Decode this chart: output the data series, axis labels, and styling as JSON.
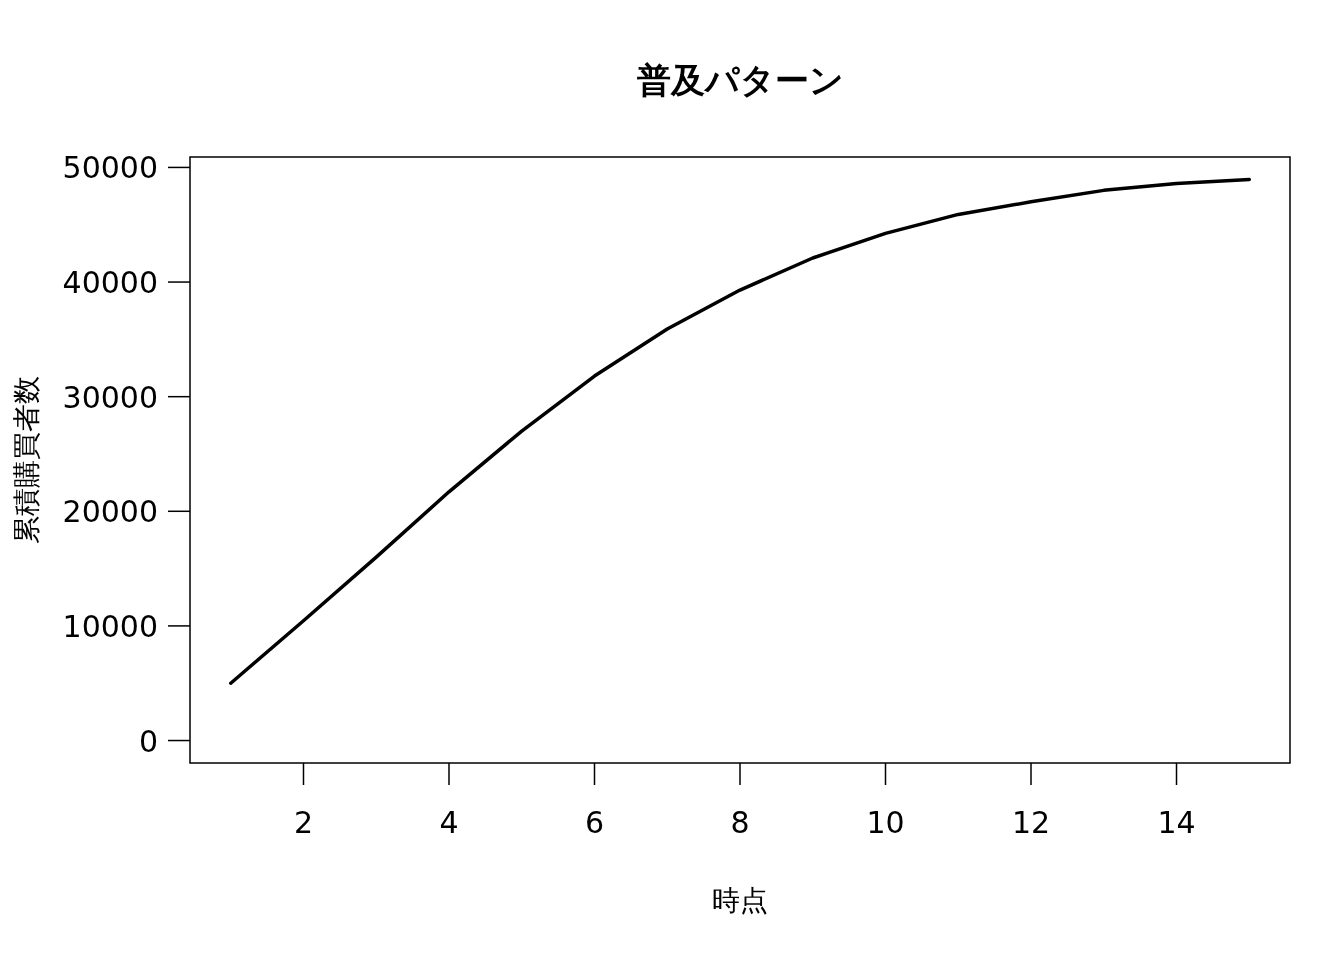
{
  "chart_data": {
    "type": "line",
    "title": "普及パターン",
    "xlabel": "時点",
    "ylabel": "累積購買者数",
    "x": [
      1,
      2,
      3,
      4,
      5,
      6,
      7,
      8,
      9,
      10,
      11,
      12,
      13,
      14,
      15
    ],
    "series": [
      {
        "color": "#000000",
        "values": [
          5000,
          10450,
          16000,
          21700,
          27000,
          31800,
          35900,
          39300,
          42100,
          44250,
          45900,
          47000,
          48000,
          48600,
          48950
        ]
      }
    ],
    "xlim": [
      0.44,
      15.56
    ],
    "ylim": [
      -1960,
      50910
    ],
    "xticks": [
      2,
      4,
      6,
      8,
      10,
      12,
      14
    ],
    "yticks": [
      0,
      10000,
      20000,
      30000,
      40000,
      50000
    ],
    "marker": "none",
    "line_style": "solid"
  }
}
